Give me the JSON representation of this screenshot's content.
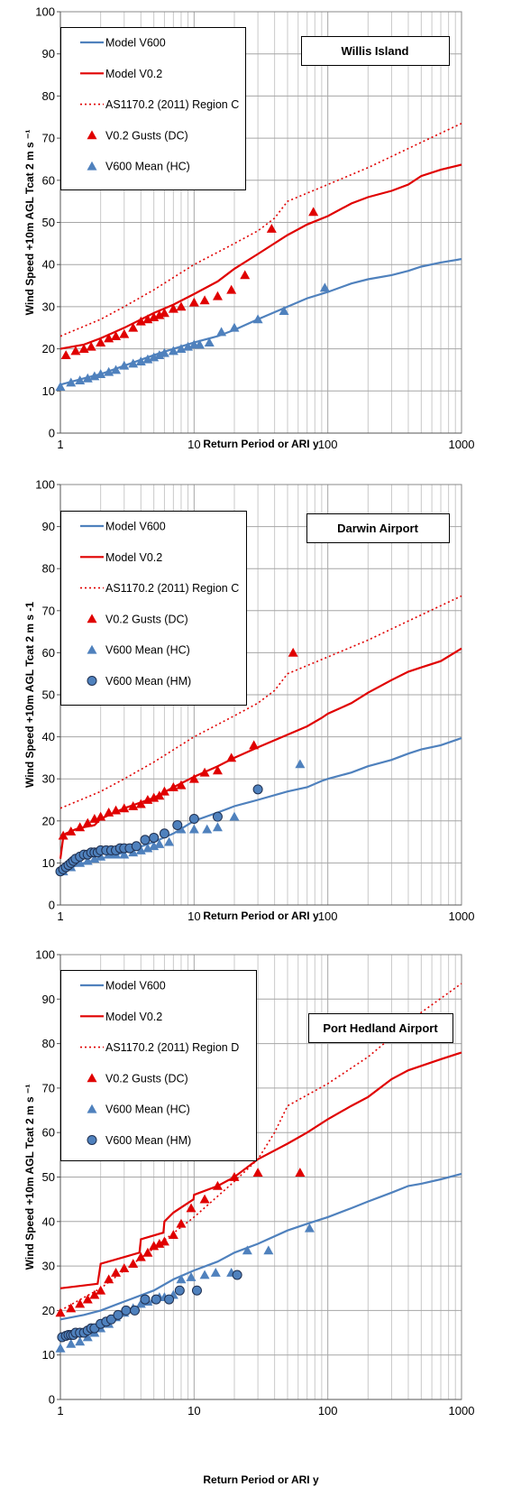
{
  "chart_data": [
    {
      "type": "line",
      "title": "",
      "station": "Willis Island",
      "xlabel": "Return Period  or ARI  y",
      "ylabel": "Wind Speed +10m AGL Tcat 2   m s ⁻¹",
      "xscale": "log",
      "xlim": [
        1,
        1000
      ],
      "ylim": [
        0,
        100
      ],
      "xticks": [
        "1",
        "10",
        "100",
        "1000"
      ],
      "yticks": [
        "0",
        "10",
        "20",
        "30",
        "40",
        "50",
        "60",
        "70",
        "80",
        "90",
        "100"
      ],
      "grid": true,
      "legend": "top-left",
      "series": [
        {
          "name": "Model V600",
          "style": "line",
          "color": "#4f81bd",
          "x": [
            1,
            1.5,
            2,
            3,
            5,
            7,
            10,
            15,
            20,
            30,
            50,
            70,
            100,
            150,
            200,
            300,
            400,
            500,
            700,
            1000
          ],
          "y": [
            11.5,
            13,
            14,
            16,
            18.5,
            20,
            21.5,
            23,
            24.5,
            27,
            30,
            32,
            33.5,
            35.5,
            36.5,
            37.5,
            38.5,
            39.5,
            40.5,
            41.3
          ]
        },
        {
          "name": "Model V0.2",
          "style": "line",
          "color": "#e00000",
          "x": [
            1,
            1.5,
            2,
            3,
            5,
            7,
            10,
            15,
            20,
            30,
            50,
            70,
            100,
            150,
            200,
            300,
            400,
            500,
            700,
            1000
          ],
          "y": [
            20,
            21,
            22.5,
            25,
            28.5,
            30.5,
            33,
            36,
            39,
            42.5,
            47,
            49.5,
            51.5,
            54.5,
            56,
            57.5,
            59,
            61,
            62.5,
            63.7
          ]
        },
        {
          "name": "AS1170.2 (2011) Region C",
          "style": "dotted",
          "color": "#e00000",
          "x": [
            1,
            2,
            3,
            5,
            10,
            20,
            30,
            40,
            50,
            100,
            200,
            500,
            1000
          ],
          "y": [
            23,
            27,
            30,
            34,
            40,
            45,
            48,
            51,
            55,
            59,
            63,
            69,
            73.5
          ]
        },
        {
          "name": "V0.2 Gusts (DC)",
          "style": "triangle",
          "color": "#e00000",
          "x": [
            1.1,
            1.3,
            1.5,
            1.7,
            2,
            2.3,
            2.6,
            3,
            3.5,
            4,
            4.5,
            5,
            5.5,
            6,
            7,
            8,
            10,
            12,
            15,
            19,
            24,
            38,
            78
          ],
          "y": [
            18.5,
            19.5,
            20,
            20.5,
            21.5,
            22.5,
            23,
            23.5,
            25,
            26.5,
            27,
            27.5,
            28,
            28.5,
            29.5,
            30,
            31,
            31.5,
            32.5,
            34,
            37.5,
            48.5,
            52.5
          ]
        },
        {
          "name": "V600 Mean (HC)",
          "style": "triangle",
          "color": "#4f81bd",
          "x": [
            1,
            1.2,
            1.4,
            1.6,
            1.8,
            2,
            2.3,
            2.6,
            3,
            3.5,
            4,
            4.5,
            5,
            5.5,
            6,
            7,
            8,
            9,
            10,
            11,
            13,
            16,
            20,
            30,
            47,
            95
          ],
          "y": [
            11,
            12,
            12.5,
            13,
            13.5,
            14,
            14.5,
            15,
            16,
            16.5,
            17,
            17.5,
            18,
            18.5,
            19,
            19.5,
            20,
            20.5,
            21,
            21,
            21.5,
            24,
            25,
            27,
            29,
            34.5
          ]
        }
      ]
    },
    {
      "type": "line",
      "title": "",
      "station": "Darwin Airport",
      "xlabel": "Return Period  or ARI  y",
      "ylabel": "Wind Speed +10m AGL Tcat 2   m s -1",
      "xscale": "log",
      "xlim": [
        1,
        1000
      ],
      "ylim": [
        0,
        100
      ],
      "xticks": [
        "1",
        "10",
        "100",
        "1000"
      ],
      "yticks": [
        "0",
        "10",
        "20",
        "30",
        "40",
        "50",
        "60",
        "70",
        "80",
        "90",
        "100"
      ],
      "grid": true,
      "legend": "top-left",
      "series": [
        {
          "name": "Model V600",
          "style": "line",
          "color": "#4f81bd",
          "x": [
            1,
            1.5,
            2,
            3,
            5,
            7,
            10,
            15,
            20,
            30,
            50,
            70,
            90,
            100,
            150,
            200,
            300,
            400,
            500,
            700,
            1000
          ],
          "y": [
            8,
            10,
            11,
            12.5,
            15,
            17,
            20,
            22,
            23.5,
            25,
            27,
            28,
            29.5,
            30,
            31.5,
            33,
            34.5,
            36,
            37,
            38,
            39.7
          ]
        },
        {
          "name": "Model V0.2",
          "style": "line",
          "color": "#e00000",
          "x": [
            1,
            1.05,
            1.1,
            1.3,
            1.5,
            1.8,
            2,
            3,
            5,
            7,
            10,
            15,
            20,
            30,
            50,
            70,
            90,
            100,
            150,
            200,
            300,
            400,
            500,
            700,
            1000
          ],
          "y": [
            11,
            16,
            17,
            18,
            18.5,
            19,
            20.5,
            23,
            25.5,
            28,
            30.5,
            33,
            35,
            37.5,
            40.5,
            42.5,
            44.5,
            45.5,
            48,
            50.5,
            53.5,
            55.5,
            56.5,
            58,
            61
          ]
        },
        {
          "name": "AS1170.2 (2011) Region C",
          "style": "dotted",
          "color": "#e00000",
          "x": [
            1,
            2,
            3,
            5,
            10,
            20,
            30,
            40,
            50,
            100,
            200,
            500,
            1000
          ],
          "y": [
            23,
            27,
            30,
            34,
            40,
            45,
            48,
            51,
            55,
            59,
            63,
            69,
            73.5
          ]
        },
        {
          "name": "V0.2 Gusts (DC)",
          "style": "triangle",
          "color": "#e00000",
          "x": [
            1.05,
            1.2,
            1.4,
            1.6,
            1.8,
            2,
            2.3,
            2.6,
            3,
            3.5,
            4,
            4.5,
            5,
            5.5,
            6,
            7,
            8,
            10,
            12,
            15,
            19,
            28,
            55
          ],
          "y": [
            16.5,
            17.5,
            18.5,
            19.5,
            20.5,
            21,
            22,
            22.5,
            23,
            23.5,
            24,
            25,
            25.5,
            26,
            27,
            28,
            28.5,
            30,
            31.5,
            32,
            35,
            38,
            60
          ]
        },
        {
          "name": "V600 Mean (HC)",
          "style": "triangle",
          "color": "#4f81bd",
          "x": [
            1.05,
            1.2,
            1.4,
            1.6,
            1.8,
            2,
            2.3,
            2.6,
            3,
            3.5,
            4,
            4.5,
            5,
            5.5,
            6.5,
            8,
            10,
            12.5,
            15,
            20,
            62
          ],
          "y": [
            8,
            9,
            10,
            10.5,
            11,
            11.5,
            12,
            12,
            12,
            12.5,
            13,
            13.5,
            14,
            14.5,
            15,
            18,
            18,
            18,
            18.5,
            21,
            33.5
          ]
        },
        {
          "name": "V600 Mean (HM)",
          "style": "circle",
          "color": "#4f81bd",
          "x": [
            1,
            1.05,
            1.1,
            1.15,
            1.2,
            1.25,
            1.3,
            1.4,
            1.5,
            1.6,
            1.7,
            1.8,
            1.9,
            2,
            2.2,
            2.4,
            2.6,
            2.8,
            3,
            3.3,
            3.7,
            4.3,
            5,
            6,
            7.5,
            10,
            15,
            30
          ],
          "y": [
            8,
            8.5,
            9,
            9.5,
            10,
            10.5,
            11,
            11.5,
            12,
            12,
            12.5,
            12.5,
            12.5,
            13,
            13,
            13,
            13,
            13.5,
            13.5,
            13.5,
            14,
            15.5,
            16,
            17,
            19,
            20.5,
            21,
            27.5
          ]
        }
      ]
    },
    {
      "type": "line",
      "title": "",
      "station": "Port Hedland Airport",
      "xlabel": "Return Period  or ARI  y",
      "ylabel": "Wind Speed +10m AGL Tcat 2   m s ⁻¹",
      "xscale": "log",
      "xlim": [
        1,
        1000
      ],
      "ylim": [
        0,
        100
      ],
      "xticks": [
        "1",
        "10",
        "100",
        "1000"
      ],
      "yticks": [
        "0",
        "10",
        "20",
        "30",
        "40",
        "50",
        "60",
        "70",
        "80",
        "90",
        "100"
      ],
      "grid": true,
      "legend": "top-left",
      "series": [
        {
          "name": "Model V600",
          "style": "line",
          "color": "#4f81bd",
          "x": [
            1,
            1.5,
            2,
            3,
            5,
            7,
            10,
            15,
            20,
            30,
            50,
            70,
            100,
            150,
            200,
            300,
            400,
            500,
            700,
            1000
          ],
          "y": [
            18,
            19,
            20,
            22,
            24.5,
            27,
            29,
            31,
            33,
            35,
            38,
            39.5,
            41,
            43,
            44.5,
            46.5,
            48,
            48.5,
            49.5,
            50.7
          ]
        },
        {
          "name": "Model V0.2",
          "style": "line",
          "color": "#e00000",
          "x": [
            1,
            1.9,
            2,
            3,
            3.9,
            4,
            5.9,
            6,
            7,
            9.9,
            10,
            15,
            20,
            30,
            50,
            70,
            100,
            150,
            200,
            300,
            400,
            500,
            700,
            1000
          ],
          "y": [
            25,
            26,
            30.5,
            32,
            33,
            36,
            37.5,
            40,
            42,
            45,
            46,
            48,
            50,
            54,
            57.5,
            60,
            63,
            66,
            68,
            72,
            74,
            75,
            76.5,
            78
          ]
        },
        {
          "name": "AS1170.2 (2011) Region D",
          "style": "dotted",
          "color": "#e00000",
          "x": [
            1,
            2,
            3,
            5,
            10,
            20,
            30,
            40,
            50,
            100,
            200,
            500,
            1000
          ],
          "y": [
            20,
            25,
            29,
            34,
            41,
            49,
            54,
            60,
            66,
            71,
            77,
            87,
            93.5
          ]
        },
        {
          "name": "V0.2 Gusts (DC)",
          "style": "triangle",
          "color": "#e00000",
          "x": [
            1,
            1.2,
            1.4,
            1.6,
            1.8,
            2,
            2.3,
            2.6,
            3,
            3.5,
            4,
            4.5,
            5,
            5.5,
            6,
            7,
            8,
            9.5,
            12,
            15,
            20,
            30,
            62
          ],
          "y": [
            19.5,
            20.5,
            21.5,
            22.5,
            23.5,
            24.5,
            27,
            28.5,
            29.5,
            30.5,
            32,
            33,
            34.5,
            35,
            35.5,
            37,
            39.5,
            43,
            45,
            48,
            50,
            51,
            51
          ]
        },
        {
          "name": "V600 Mean (HC)",
          "style": "triangle",
          "color": "#4f81bd",
          "x": [
            1,
            1.2,
            1.4,
            1.6,
            1.8,
            2,
            2.3,
            2.6,
            3,
            3.5,
            4,
            4.5,
            5,
            5.5,
            6,
            7,
            8,
            9.5,
            12,
            14.5,
            19,
            25,
            36,
            73
          ],
          "y": [
            11.5,
            12.5,
            13,
            14,
            15,
            16,
            17,
            18.5,
            19.5,
            20.5,
            21.5,
            22,
            22.5,
            23,
            23,
            23.5,
            27,
            27.5,
            28,
            28.5,
            28.5,
            33.5,
            33.5,
            38.5
          ]
        },
        {
          "name": "V600 Mean (HM)",
          "style": "circle",
          "color": "#4f81bd",
          "x": [
            1.03,
            1.1,
            1.15,
            1.2,
            1.25,
            1.3,
            1.4,
            1.5,
            1.6,
            1.7,
            1.8,
            2,
            2.2,
            2.4,
            2.7,
            3.1,
            3.6,
            4.3,
            5.2,
            6.5,
            7.8,
            10.5,
            21
          ],
          "y": [
            14,
            14.3,
            14.5,
            14.5,
            14.5,
            15,
            15,
            15,
            15.5,
            16,
            16,
            17,
            17.5,
            18,
            19,
            20,
            20,
            22.5,
            22.5,
            22.5,
            24.5,
            24.5,
            28
          ]
        }
      ]
    }
  ]
}
